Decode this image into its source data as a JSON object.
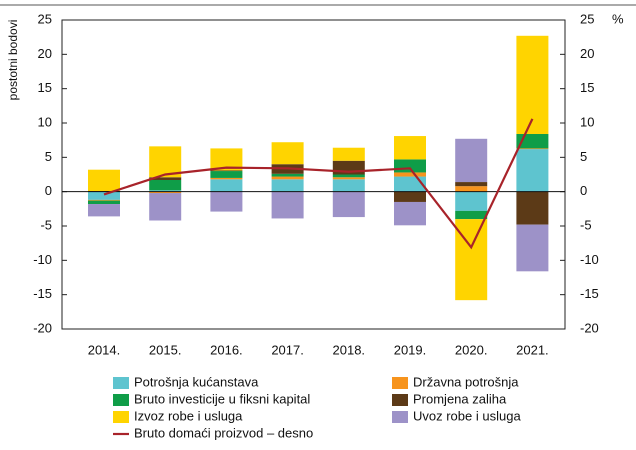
{
  "chart_data": {
    "type": "bar",
    "y_label": "postotni bodovi",
    "y2_label": "%",
    "categories": [
      "2014.",
      "2015.",
      "2016.",
      "2017.",
      "2018.",
      "2019.",
      "2020.",
      "2021."
    ],
    "series": [
      {
        "name": "Potrošnja kućanstava",
        "color": "#5ec4cf",
        "values": [
          -1.2,
          0.2,
          1.8,
          1.8,
          1.8,
          2.2,
          -2.8,
          6.2
        ]
      },
      {
        "name": "Državna potrošnja",
        "color": "#f7941d",
        "values": [
          -0.1,
          -0.2,
          0.2,
          0.4,
          0.3,
          0.6,
          0.8,
          0.1
        ]
      },
      {
        "name": "Bruto investicije u fiksni kapital",
        "color": "#0f9d48",
        "values": [
          -0.5,
          1.5,
          1.0,
          0.4,
          0.4,
          1.9,
          -1.2,
          2.1
        ]
      },
      {
        "name": "Promjena zaliha",
        "color": "#5c3a17",
        "values": [
          0.1,
          0.4,
          0.1,
          1.4,
          2.0,
          -1.5,
          0.6,
          -4.8
        ]
      },
      {
        "name": "Izvoz robe i usluga",
        "color": "#ffd400",
        "values": [
          3.1,
          4.5,
          3.2,
          3.2,
          1.9,
          3.4,
          -11.8,
          14.3
        ]
      },
      {
        "name": "Uvoz robe i usluga",
        "color": "#9d92c8",
        "values": [
          -1.8,
          -4.0,
          -2.9,
          -3.9,
          -3.7,
          -3.4,
          6.3,
          -6.8
        ]
      },
      {
        "name": "Bruto domaći proizvod – desno",
        "color": "#a8232a",
        "type": "line",
        "axis": "y2",
        "values": [
          -0.4,
          2.5,
          3.5,
          3.4,
          2.9,
          3.4,
          -8.1,
          10.6
        ]
      }
    ],
    "ylim": [
      -20,
      25
    ],
    "yticks": [
      -20,
      -15,
      -10,
      -5,
      0,
      5,
      10,
      15,
      20,
      25
    ],
    "y2lim": [
      -20,
      25
    ],
    "y2ticks": [
      -20,
      -15,
      -10,
      -5,
      0,
      5,
      10,
      15,
      20,
      25
    ],
    "grid": false
  }
}
